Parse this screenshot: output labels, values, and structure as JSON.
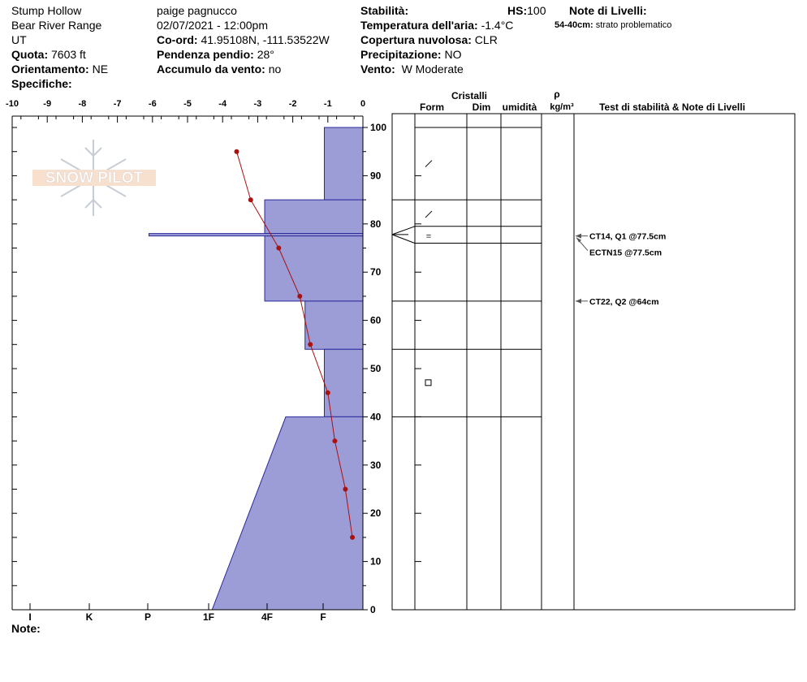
{
  "site": {
    "location": "Stump Hollow",
    "range": "Bear River Range",
    "state": "UT",
    "elevation_label": "Quota:",
    "elevation": "7603 ft",
    "aspect_label": "Orientamento:",
    "aspect": "NE",
    "specifics_label": "Specifiche:"
  },
  "observer": {
    "name": "paige pagnucco",
    "datetime": "02/07/2021 - 12:00pm",
    "coords_label": "Co-ord:",
    "coords": "41.95108N, -111.53522W",
    "slope_label": "Pendenza pendio:",
    "slope": "28°",
    "wind_loading_label": "Accumulo da vento:",
    "wind_loading": "no"
  },
  "conditions": {
    "stability_label": "Stabilità:",
    "hs_label": "HS:",
    "hs": "100",
    "air_temp_label": "Temperatura dell'aria:",
    "air_temp": "-1.4°C",
    "sky_label": "Copertura nuvolosa:",
    "sky": "CLR",
    "precip_label": "Precipitazione:",
    "precip": "NO",
    "wind_label": "Vento:",
    "wind": "W Moderate"
  },
  "layer_notes": {
    "title": "Note di Livelli:",
    "entry_range": "54-40cm:",
    "entry_text": "strato problematico"
  },
  "footer": {
    "notes_label": "Note:"
  },
  "watermark": {
    "text": "SNOW PILOT"
  },
  "chart_data": {
    "type": "snow-profile",
    "temp_axis": {
      "ticks": [
        "-10",
        "-9",
        "-8",
        "-7",
        "-6",
        "-5",
        "-4",
        "-3",
        "-2",
        "-1",
        "0"
      ],
      "range": [
        -10,
        0
      ]
    },
    "depth_axis": {
      "range": [
        0,
        100
      ],
      "ticks": [
        "0",
        "10",
        "20",
        "30",
        "40",
        "50",
        "60",
        "70",
        "80",
        "90",
        "100"
      ]
    },
    "hardness_axis": {
      "labels": [
        "I",
        "K",
        "P",
        "1F",
        "4F",
        "F"
      ]
    },
    "temperature_profile": [
      {
        "depth": 95,
        "temp": -3.6
      },
      {
        "depth": 85,
        "temp": -3.2
      },
      {
        "depth": 75,
        "temp": -2.4
      },
      {
        "depth": 65,
        "temp": -1.8
      },
      {
        "depth": 55,
        "temp": -1.5
      },
      {
        "depth": 45,
        "temp": -1.0
      },
      {
        "depth": 35,
        "temp": -0.8
      },
      {
        "depth": 25,
        "temp": -0.5
      },
      {
        "depth": 15,
        "temp": -0.3
      }
    ],
    "hardness_layers": [
      {
        "top": 100,
        "bottom": 85,
        "hardness_top": -1.1,
        "hardness_bottom": -1.1
      },
      {
        "top": 85,
        "bottom": 78,
        "hardness_top": -2.8,
        "hardness_bottom": -2.8
      },
      {
        "top": 78,
        "bottom": 77.5,
        "hardness_top": -6.1,
        "hardness_bottom": -6.1
      },
      {
        "top": 77.5,
        "bottom": 64,
        "hardness_top": -2.8,
        "hardness_bottom": -2.8
      },
      {
        "top": 64,
        "bottom": 54,
        "hardness_top": -1.65,
        "hardness_bottom": -1.65
      },
      {
        "top": 54,
        "bottom": 40,
        "hardness_top": -1.1,
        "hardness_bottom": -1.1
      },
      {
        "top": 40,
        "bottom": 0,
        "hardness_top": -2.2,
        "hardness_bottom": -4.3
      }
    ],
    "layer_boundaries": [
      85,
      79.5,
      76,
      64,
      54,
      40
    ],
    "crystal_forms": [
      {
        "depth": 92.5,
        "symbol": "/"
      },
      {
        "depth": 82,
        "symbol": "/"
      },
      {
        "depth": 77.5,
        "symbol": "="
      },
      {
        "depth": 47,
        "symbol": "□"
      }
    ],
    "table_headers": {
      "crystals": "Cristalli",
      "form": "Form",
      "size": "Dim",
      "moisture": "umidità",
      "rho": "ρ",
      "density_unit": "kg/m³",
      "tests": "Test di stabilità & Note di Livelli"
    },
    "stability_tests": [
      {
        "depth": 77.5,
        "label": "CT14, Q1 @77.5cm"
      },
      {
        "depth": 77.5,
        "label": "ECTN15 @77.5cm",
        "offset": true
      },
      {
        "depth": 64,
        "label": "CT22, Q2 @64cm"
      }
    ],
    "colors": {
      "fill": "#9c9cd6",
      "outline": "#2a2a9a",
      "temp": "#aa1111"
    }
  }
}
